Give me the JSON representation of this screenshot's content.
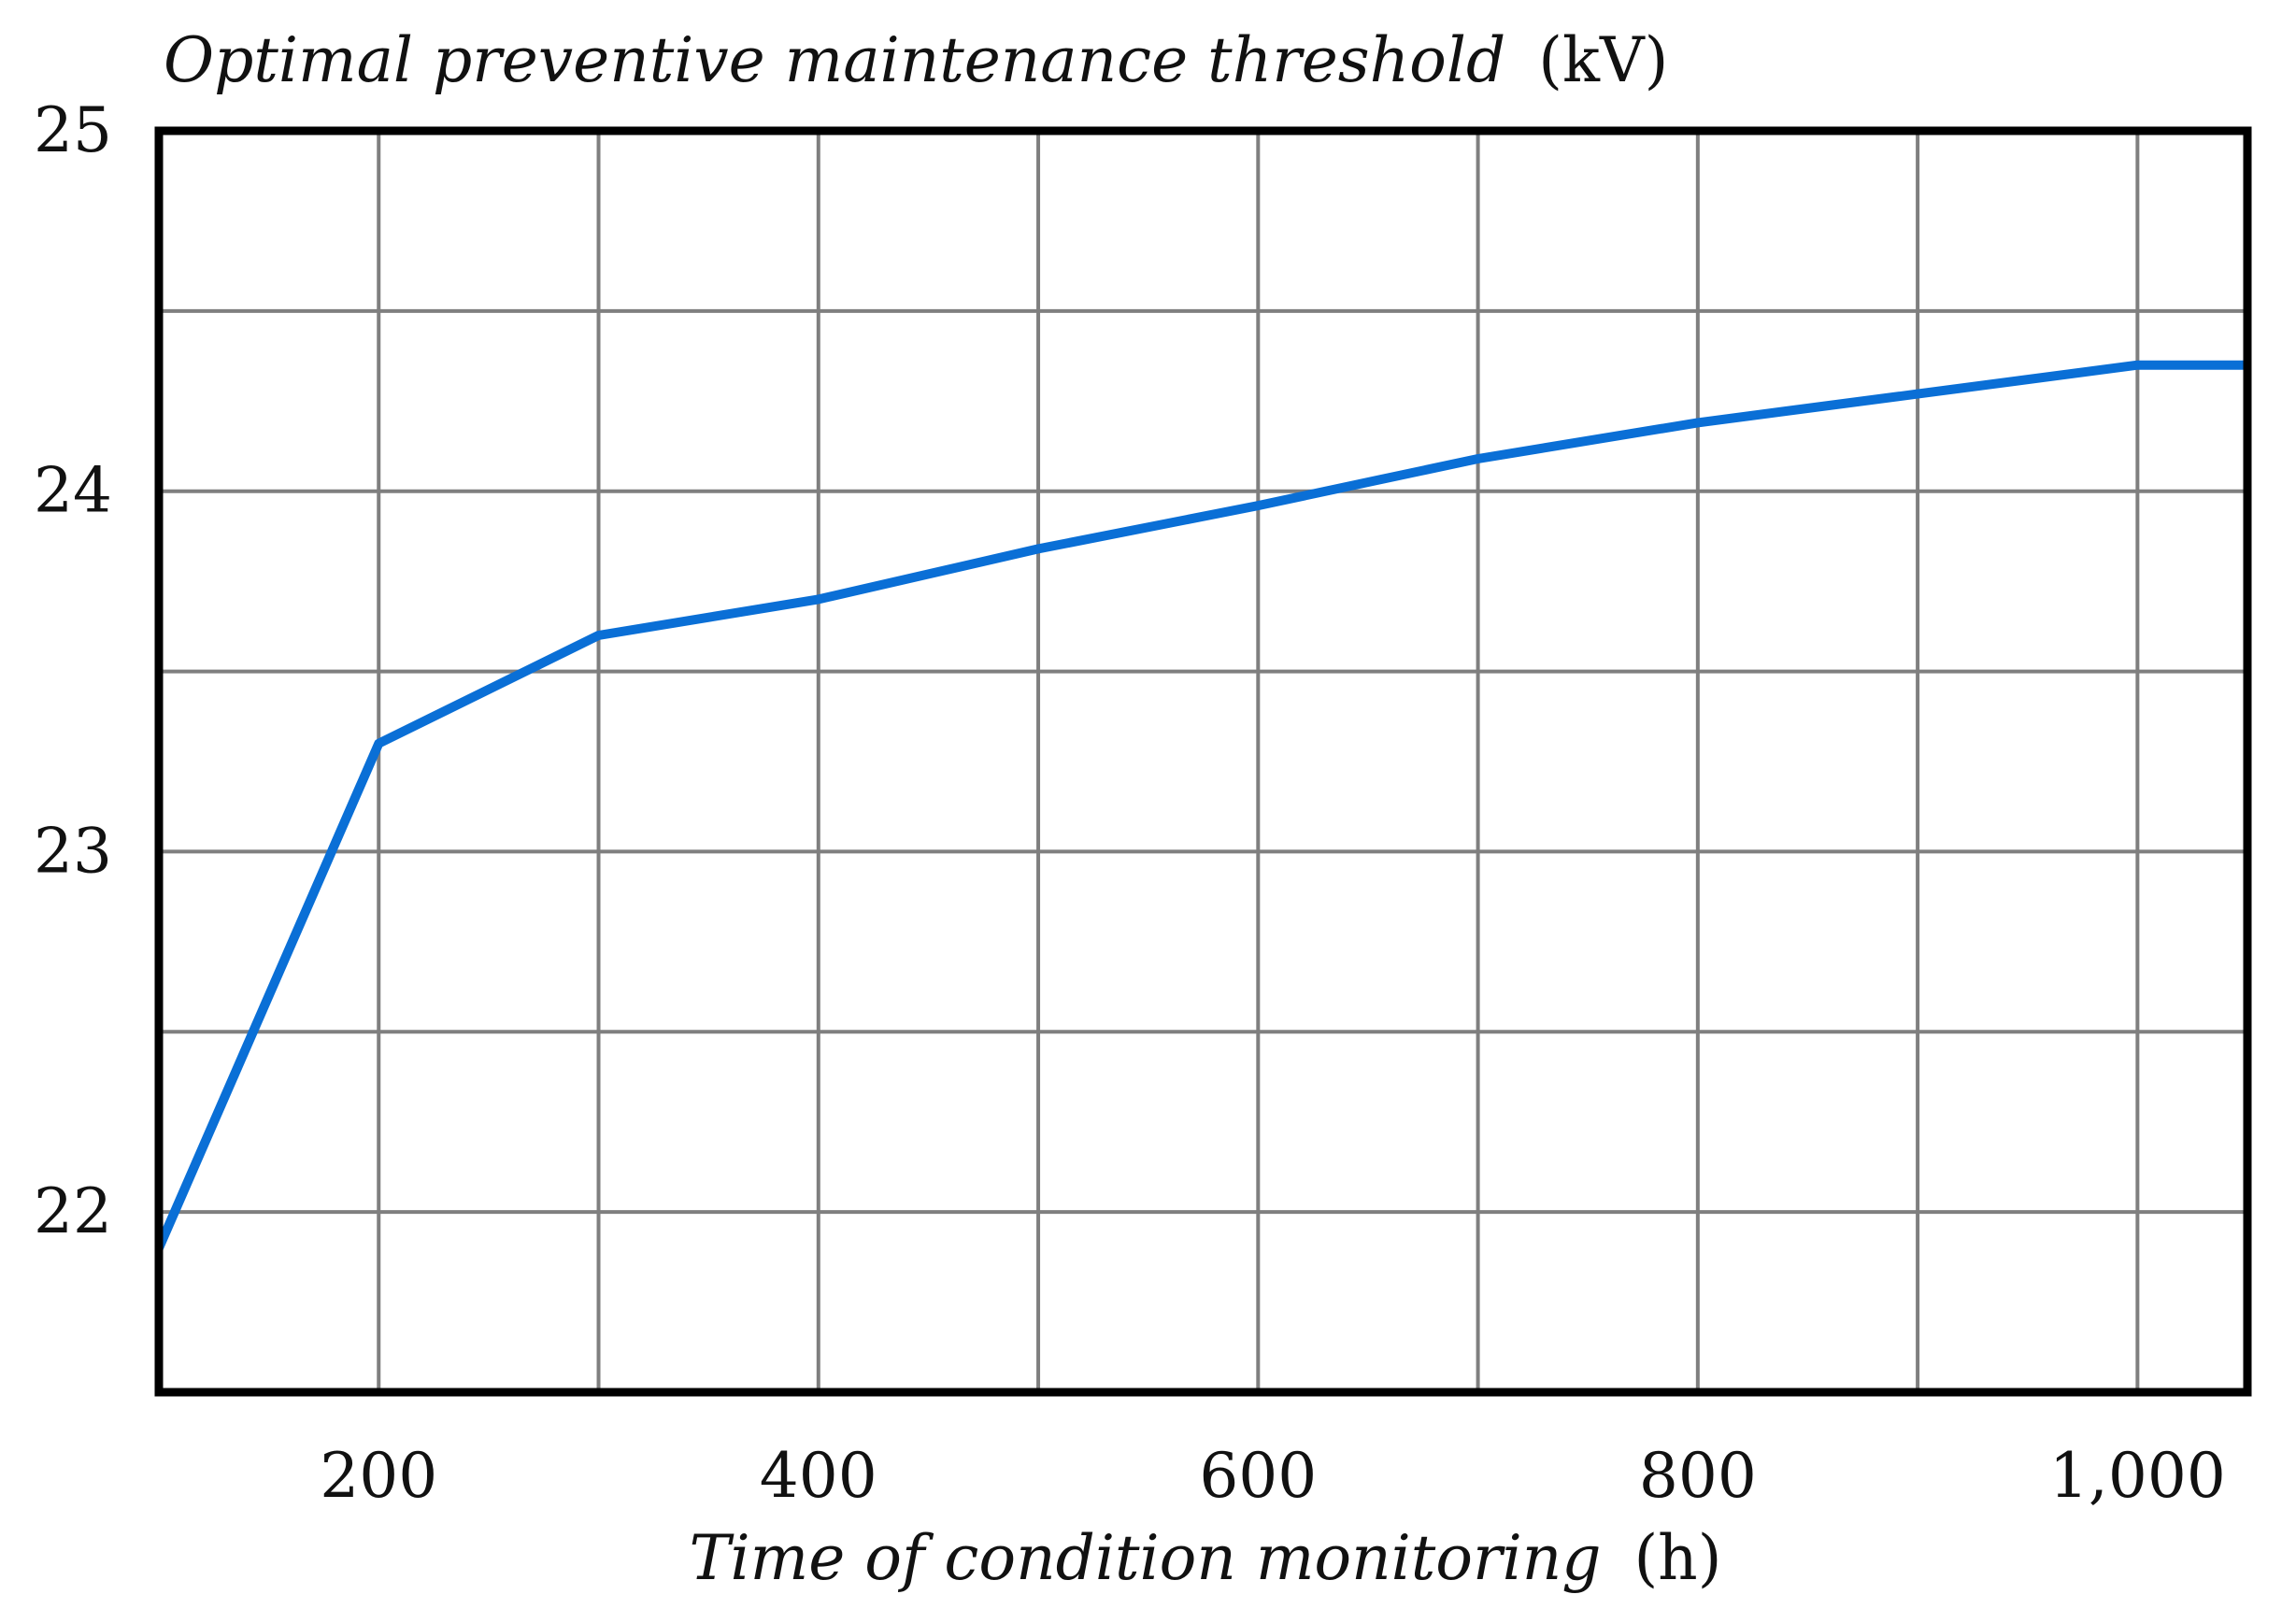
{
  "chart_data": {
    "type": "line",
    "ylabel": {
      "main": "Optimal preventive maintenance threshold",
      "unit": "(kV)"
    },
    "xlabel": {
      "main": "Time of condition monitoring",
      "unit": "(h)"
    },
    "xlim": [
      100,
      1050
    ],
    "ylim": [
      21.5,
      25
    ],
    "x_ticks": [
      200,
      400,
      600,
      800,
      1000
    ],
    "x_tick_labels": [
      "200",
      "400",
      "600",
      "800",
      "1,000"
    ],
    "y_ticks": [
      22,
      23,
      24,
      25
    ],
    "y_tick_labels": [
      "22",
      "23",
      "24",
      "25"
    ],
    "grid": true,
    "x_grid": [
      200,
      300,
      400,
      500,
      600,
      700,
      800,
      900,
      1000
    ],
    "y_grid": [
      21.5,
      22,
      22.5,
      23,
      23.5,
      24,
      24.5,
      25
    ],
    "series": [
      {
        "color": "#0a6fd6",
        "x": [
          100,
          200,
          300,
          400,
          500,
          600,
          700,
          800,
          900,
          1000,
          1050
        ],
        "y": [
          21.9,
          23.3,
          23.6,
          23.7,
          23.84,
          23.96,
          24.09,
          24.19,
          24.27,
          24.35,
          24.35
        ]
      }
    ]
  }
}
